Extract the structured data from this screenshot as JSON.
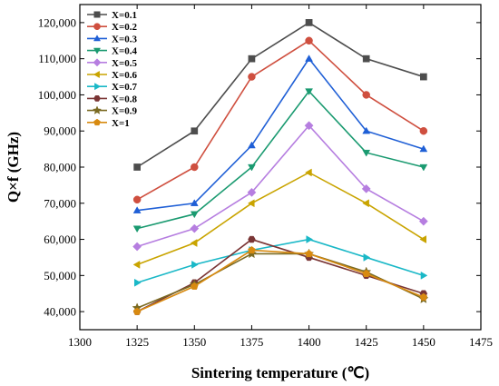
{
  "chart_data": {
    "type": "line",
    "xlabel": "Sintering temperature (℃)",
    "ylabel": "Q×f (GHz)",
    "xlim": [
      1300,
      1475
    ],
    "ylim": [
      35000,
      125000
    ],
    "xticks": [
      1300,
      1325,
      1350,
      1375,
      1400,
      1425,
      1450,
      1475
    ],
    "xtick_labels": [
      "1300",
      "1325",
      "1350",
      "1375",
      "1400",
      "1425",
      "1450",
      "1475"
    ],
    "yticks": [
      40000,
      50000,
      60000,
      70000,
      80000,
      90000,
      100000,
      110000,
      120000
    ],
    "ytick_labels": [
      "40,000",
      "50,000",
      "60,000",
      "70,000",
      "80,000",
      "90,000",
      "100,000",
      "110,000",
      "120,000"
    ],
    "x": [
      1325,
      1350,
      1375,
      1400,
      1425,
      1450
    ],
    "legend_position": "top-left",
    "grid": false,
    "series": [
      {
        "name": "X=0.1",
        "color": "#4d4d4d",
        "marker": "square",
        "values": [
          80000,
          90000,
          110000,
          120000,
          110000,
          105000
        ]
      },
      {
        "name": "X=0.2",
        "color": "#cf4f3f",
        "marker": "circle",
        "values": [
          71000,
          80000,
          105000,
          115000,
          100000,
          90000
        ]
      },
      {
        "name": "X=0.3",
        "color": "#1f5fd6",
        "marker": "triangle-up",
        "values": [
          68000,
          70000,
          86000,
          110000,
          90000,
          85000
        ]
      },
      {
        "name": "X=0.4",
        "color": "#1a9a70",
        "marker": "triangle-down",
        "values": [
          63000,
          67000,
          80000,
          101000,
          84000,
          80000
        ]
      },
      {
        "name": "X=0.5",
        "color": "#b67ee0",
        "marker": "diamond",
        "values": [
          58000,
          63000,
          73000,
          91500,
          74000,
          65000
        ]
      },
      {
        "name": "X=0.6",
        "color": "#c9a400",
        "marker": "triangle-left",
        "values": [
          53000,
          59000,
          70000,
          78500,
          70000,
          60000
        ]
      },
      {
        "name": "X=0.7",
        "color": "#1ab8c7",
        "marker": "triangle-right",
        "values": [
          48000,
          53000,
          57000,
          60000,
          55000,
          50000
        ]
      },
      {
        "name": "X=0.8",
        "color": "#7a3535",
        "marker": "hexagon",
        "values": [
          40000,
          48000,
          60000,
          55000,
          50000,
          45000
        ]
      },
      {
        "name": "X=0.9",
        "color": "#7a6a22",
        "marker": "star",
        "values": [
          41000,
          47500,
          56000,
          56000,
          51000,
          43500
        ]
      },
      {
        "name": "X=1",
        "color": "#d88a10",
        "marker": "pentagon",
        "values": [
          40000,
          47000,
          57000,
          56000,
          50500,
          44000
        ]
      }
    ]
  }
}
